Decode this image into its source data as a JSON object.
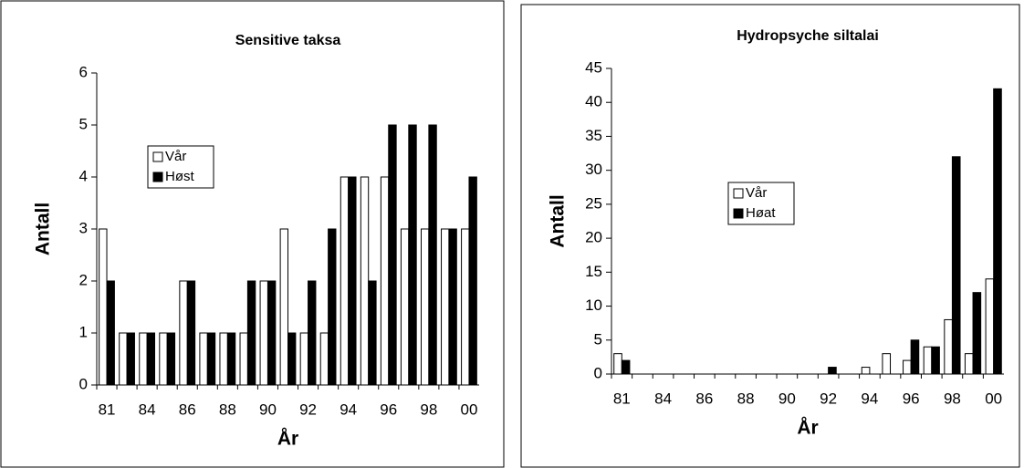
{
  "chart_data": [
    {
      "type": "bar",
      "title": "Sensitive taksa",
      "x_label": "År",
      "y_label": "Antall",
      "categories": [
        "81",
        null,
        "84",
        null,
        "86",
        null,
        "88",
        null,
        "90",
        null,
        "92",
        null,
        "94",
        null,
        "96",
        null,
        "98",
        null,
        "00"
      ],
      "series": [
        {
          "name": "Vår",
          "color": "#ffffff",
          "values": [
            3,
            1,
            1,
            1,
            2,
            1,
            1,
            1,
            2,
            3,
            1,
            1,
            4,
            4,
            4,
            3,
            3,
            3,
            3
          ]
        },
        {
          "name": "Høst",
          "color": "#000000",
          "values": [
            2,
            1,
            1,
            1,
            2,
            1,
            1,
            2,
            2,
            1,
            2,
            3,
            4,
            2,
            5,
            5,
            5,
            3,
            4
          ]
        }
      ],
      "ylim": [
        0,
        6
      ],
      "yticks": [
        0,
        1,
        2,
        3,
        4,
        5,
        6
      ]
    },
    {
      "type": "bar",
      "title": "Hydropsyche siltalai",
      "x_label": "År",
      "y_label": "Antall",
      "categories": [
        "81",
        null,
        "84",
        null,
        "86",
        null,
        "88",
        null,
        "90",
        null,
        "92",
        null,
        "94",
        null,
        "96",
        null,
        "98",
        null,
        "00"
      ],
      "series": [
        {
          "name": "Vår",
          "color": "#ffffff",
          "values": [
            3,
            0,
            0,
            0,
            0,
            0,
            0,
            0,
            0,
            0,
            0,
            0,
            1,
            3,
            2,
            4,
            8,
            3,
            14
          ]
        },
        {
          "name": "Høat",
          "color": "#000000",
          "values": [
            2,
            0,
            0,
            0,
            0,
            0,
            0,
            0,
            0,
            0,
            1,
            0,
            0,
            0,
            5,
            4,
            32,
            12,
            42
          ]
        }
      ],
      "ylim": [
        0,
        45
      ],
      "yticks": [
        0,
        5,
        10,
        15,
        20,
        25,
        30,
        35,
        40,
        45
      ]
    }
  ]
}
